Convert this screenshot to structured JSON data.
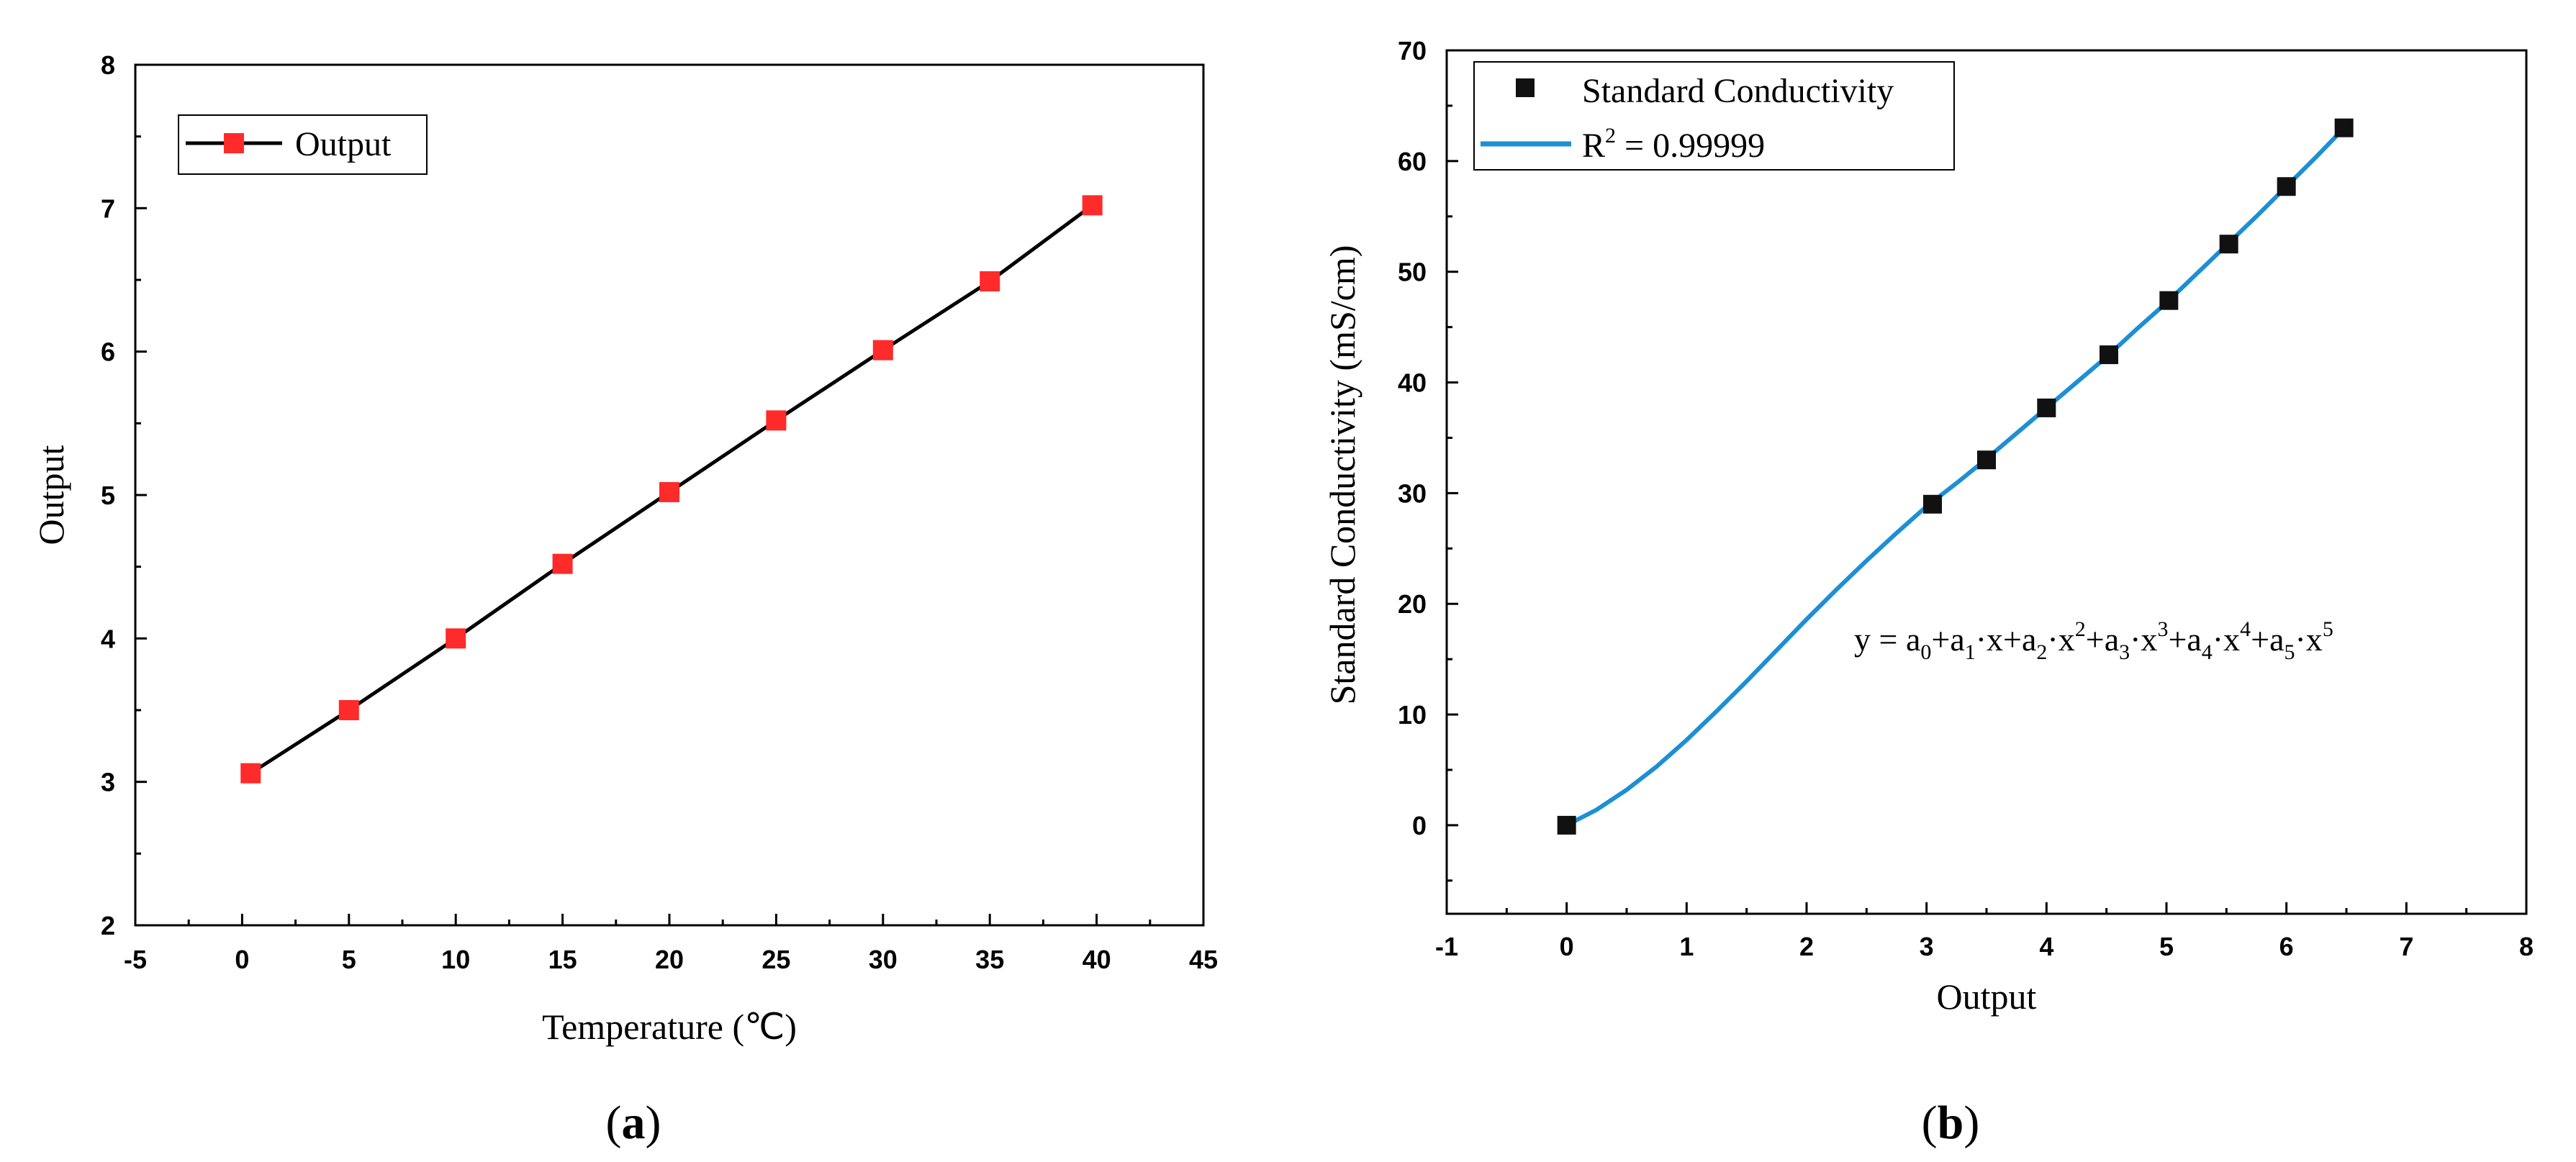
{
  "chart_data": [
    {
      "type": "line",
      "panel_label": "a",
      "xlabel": "Temperature (℃)",
      "ylabel": "Output",
      "xlim": [
        -5,
        45
      ],
      "ylim": [
        2,
        8
      ],
      "xticks": [
        "-5",
        "0",
        "5",
        "10",
        "15",
        "20",
        "25",
        "30",
        "35",
        "40",
        "45"
      ],
      "yticks": [
        "2",
        "3",
        "4",
        "5",
        "6",
        "7",
        "8"
      ],
      "legend_position": "top-left",
      "series": [
        {
          "name": "Output",
          "color": "#000000",
          "marker_color": "#ff2a2a",
          "x": [
            0.4,
            5,
            10,
            15,
            20,
            25,
            30,
            35,
            39.8
          ],
          "y": [
            3.06,
            3.5,
            4.0,
            4.52,
            5.02,
            5.52,
            6.01,
            6.49,
            7.02
          ]
        }
      ]
    },
    {
      "type": "scatter",
      "panel_label": "b",
      "xlabel": "Output",
      "ylabel": "Standard Conductivity (mS/cm)",
      "xlim": [
        -1,
        8
      ],
      "ylim": [
        -8,
        70
      ],
      "xticks": [
        "-1",
        "0",
        "1",
        "2",
        "3",
        "4",
        "5",
        "6",
        "7",
        "8"
      ],
      "yticks": [
        "0",
        "10",
        "20",
        "30",
        "40",
        "50",
        "60",
        "70"
      ],
      "legend_position": "top-left",
      "equation": {
        "y": "y",
        "eq": " = ",
        "a0": "a",
        "s0": "0",
        "p1": "+a",
        "s1": "1",
        "x1": "·x+a",
        "s2": "2",
        "x2": "·x",
        "e2": "2",
        "p3": "+a",
        "s3": "3",
        "x3": "·x",
        "e3": "3",
        "p4": "+a",
        "s4": "4",
        "x4": "·x",
        "e4": "4",
        "p5": "+a",
        "s5": "5",
        "x5": "·x",
        "e5": "5"
      },
      "series": [
        {
          "name": "Standard Conductivity",
          "color": "#000000",
          "x": [
            0,
            3.05,
            3.5,
            4.0,
            4.52,
            5.02,
            5.52,
            6.0,
            6.48
          ],
          "y": [
            0,
            29,
            33,
            37.7,
            42.5,
            47.4,
            52.5,
            57.7,
            63
          ]
        },
        {
          "name": "R² = 0.99999",
          "legend_prefix": "R",
          "legend_sup": "2",
          "legend_suffix": " = 0.99999",
          "color": "#1d8fd4",
          "fit_x": [
            0,
            0.25,
            0.5,
            0.75,
            1.0,
            1.25,
            1.5,
            1.75,
            2.0,
            2.25,
            2.5,
            2.75,
            3.0,
            3.25,
            3.5,
            3.75,
            4.0,
            4.25,
            4.5,
            4.75,
            5.0,
            5.25,
            5.5,
            5.75,
            6.0,
            6.25,
            6.5
          ],
          "fit_y": [
            0,
            1.4,
            3.2,
            5.3,
            7.7,
            10.3,
            13.0,
            15.8,
            18.6,
            21.3,
            23.9,
            26.4,
            28.8,
            30.9,
            33.1,
            35.4,
            37.7,
            40.0,
            42.3,
            44.8,
            47.2,
            49.8,
            52.4,
            55.0,
            57.7,
            60.4,
            63.2
          ]
        }
      ]
    }
  ]
}
